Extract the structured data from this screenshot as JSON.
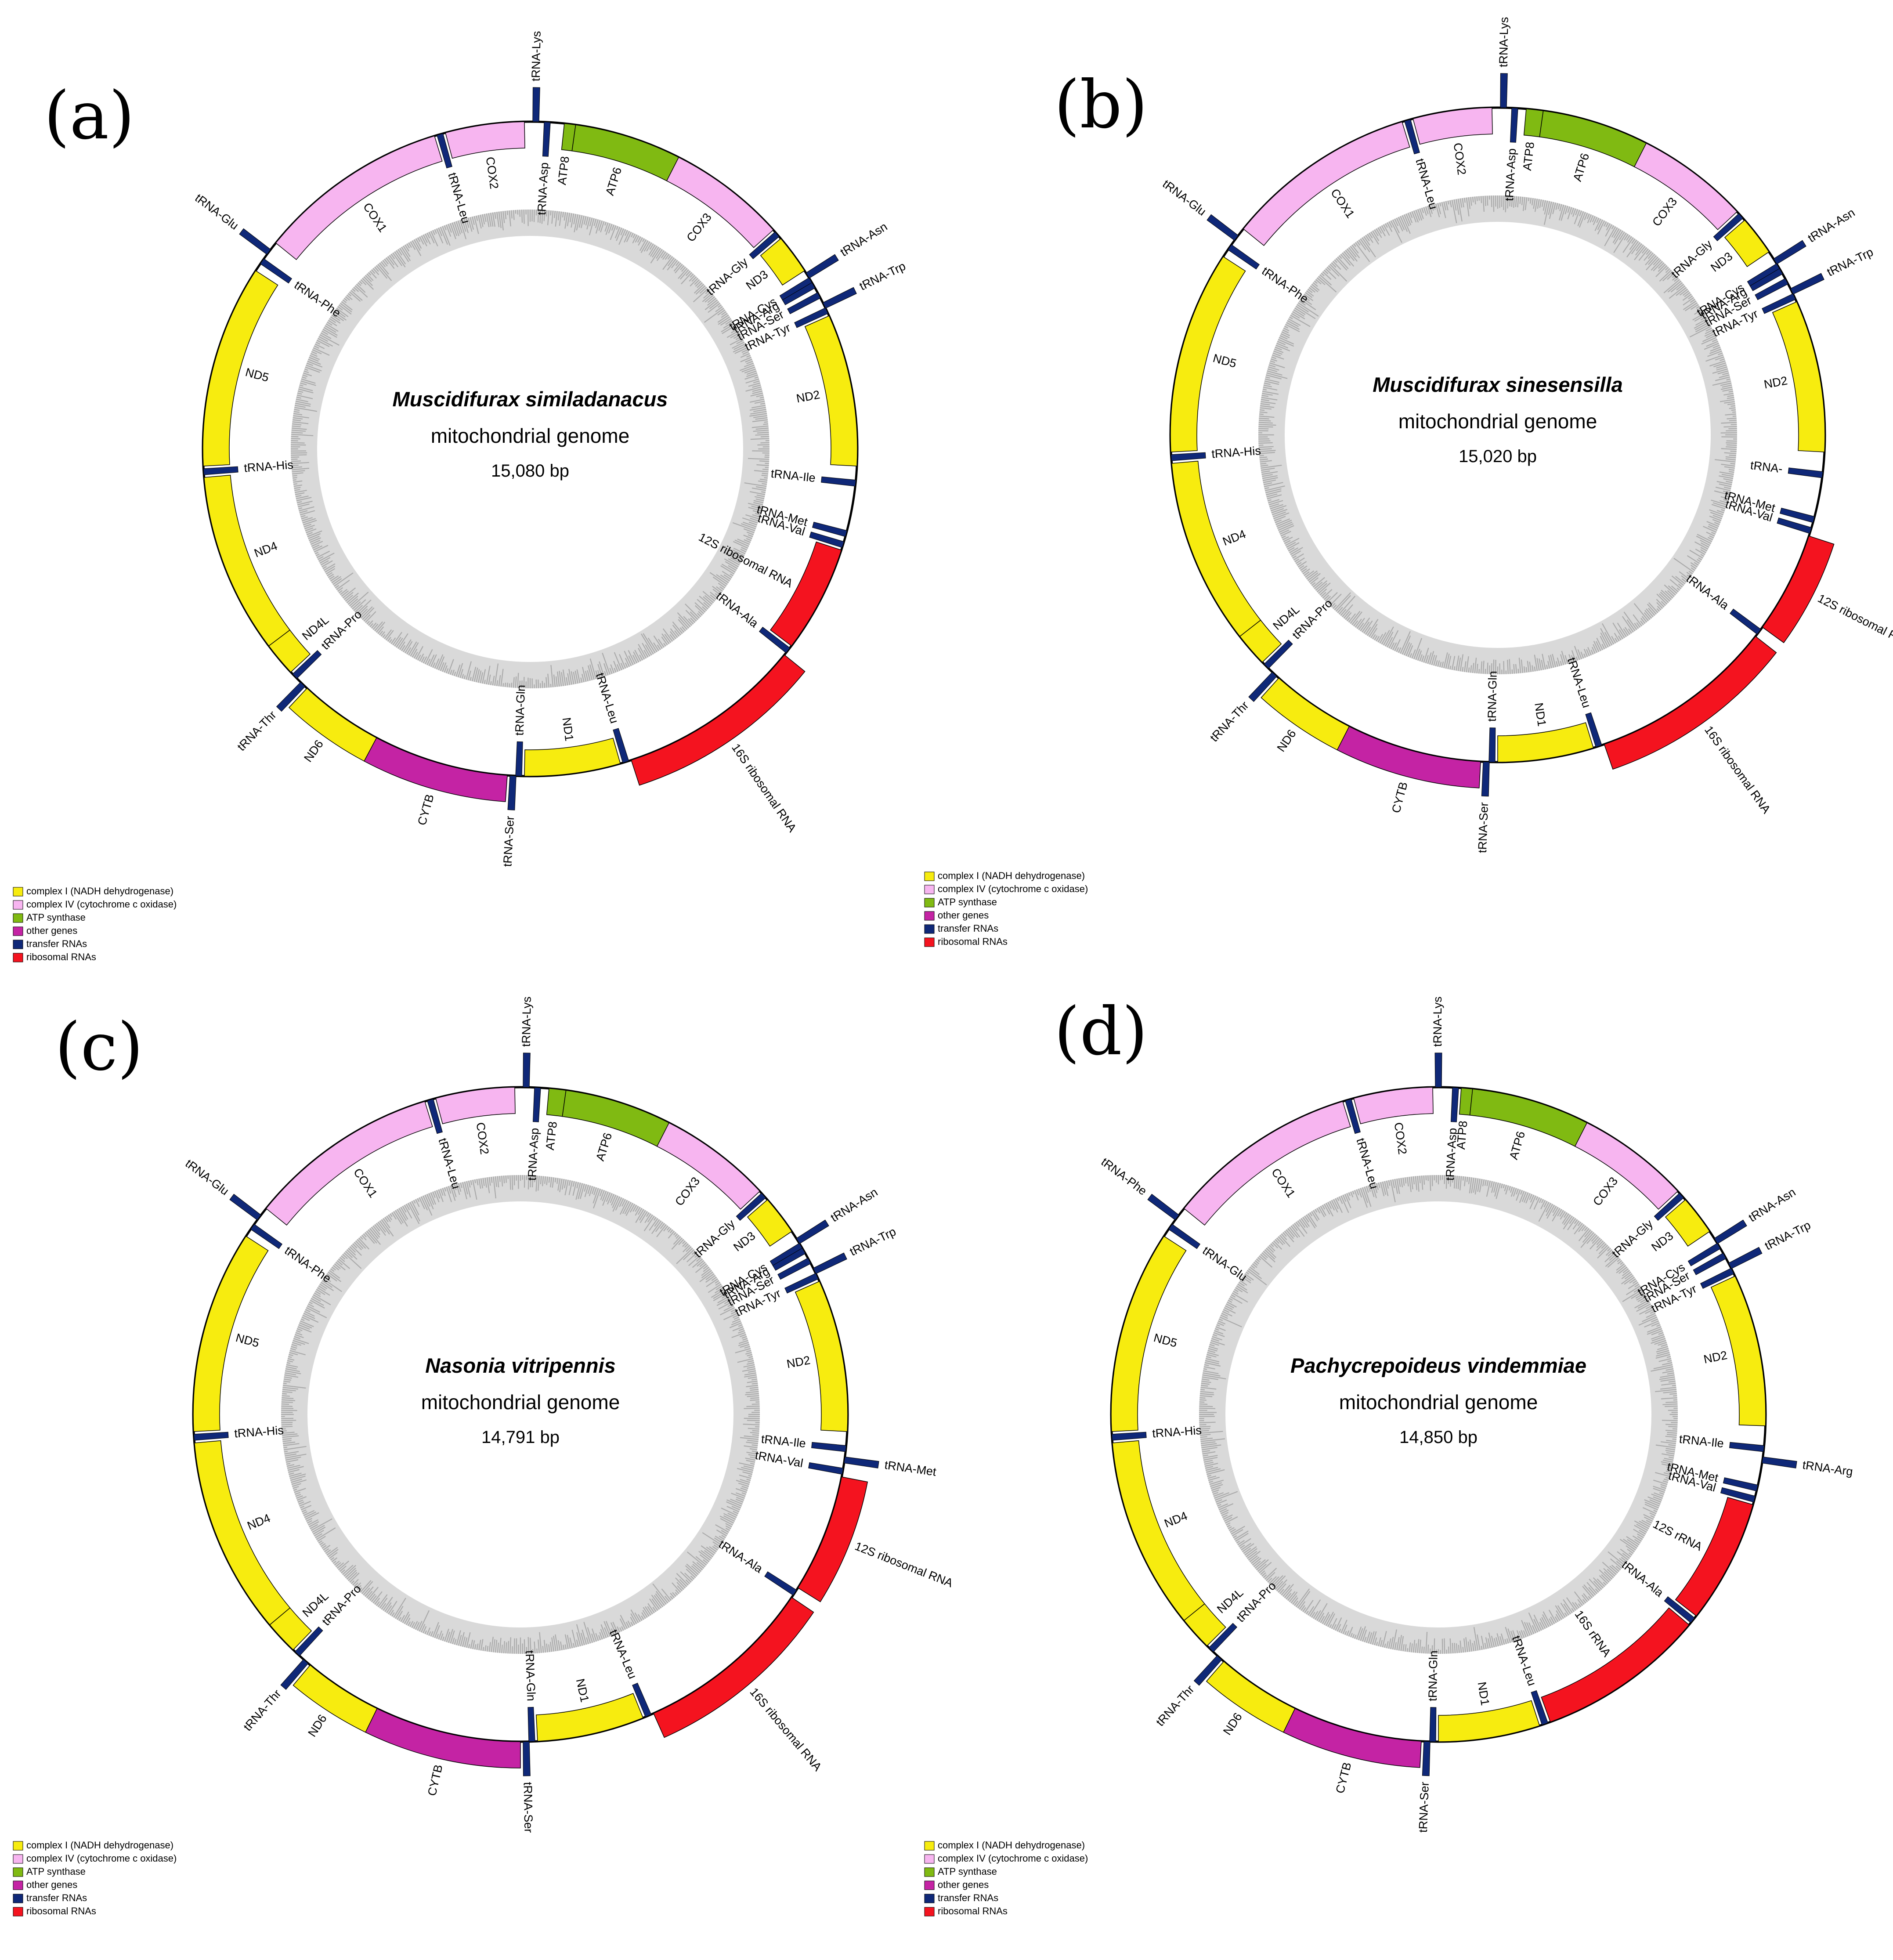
{
  "colors": {
    "complexI": "#f7ec0f",
    "complexIV": "#f7b5f0",
    "atp": "#80ba12",
    "other": "#c423a4",
    "trna": "#0f2878",
    "rrna": "#f4131f",
    "gc_ring": "#d9d9d9",
    "gc_tick": "#a9a9a9"
  },
  "legend": [
    {
      "key": "complexI",
      "label": "complex I (NADH dehydrogenase)"
    },
    {
      "key": "complexIV",
      "label": "complex IV (cytochrome c oxidase)"
    },
    {
      "key": "atp",
      "label": "ATP synthase"
    },
    {
      "key": "other",
      "label": "other genes"
    },
    {
      "key": "trna",
      "label": "transfer RNAs"
    },
    {
      "key": "rrna",
      "label": "ribosomal RNAs"
    }
  ],
  "panels": [
    {
      "letter": "(a)",
      "species": "Muscidifurax similadanacus",
      "subtitle": "mitochondrial genome",
      "size": "15,080 bp",
      "genes": [
        {
          "n": "tRNA-Lys",
          "t": "trna",
          "a": 1,
          "s": "out"
        },
        {
          "n": "tRNA-Asp",
          "t": "trna",
          "a": 3,
          "s": "in"
        },
        {
          "n": "ATP8",
          "t": "atp",
          "a": 6,
          "e": 8,
          "s": "in"
        },
        {
          "n": "ATP6",
          "t": "atp",
          "a": 8,
          "e": 27,
          "s": "in"
        },
        {
          "n": "COX3",
          "t": "complexIV",
          "a": 27,
          "e": 48,
          "s": "in"
        },
        {
          "n": "tRNA-Gly",
          "t": "trna",
          "a": 49,
          "s": "in"
        },
        {
          "n": "ND3",
          "t": "complexI",
          "a": 50,
          "e": 57,
          "s": "in"
        },
        {
          "n": "tRNA-Asn",
          "t": "trna",
          "a": 58,
          "s": "out"
        },
        {
          "n": "tRNA-Cys",
          "t": "trna",
          "a": 59,
          "s": "in"
        },
        {
          "n": "tRNA-Arg",
          "t": "trna",
          "a": 60,
          "s": "in"
        },
        {
          "n": "tRNA-Ser",
          "t": "trna",
          "a": 62,
          "s": "in"
        },
        {
          "n": "tRNA-Trp",
          "t": "trna",
          "a": 64,
          "s": "out"
        },
        {
          "n": "tRNA-Tyr",
          "t": "trna",
          "a": 65,
          "s": "in"
        },
        {
          "n": "ND2",
          "t": "complexI",
          "a": 66,
          "e": 93,
          "s": "in"
        },
        {
          "n": "tRNA-Ile",
          "t": "trna",
          "a": 96,
          "s": "in"
        },
        {
          "n": "tRNA-Met",
          "t": "trna",
          "a": 105,
          "s": "in"
        },
        {
          "n": "tRNA-Val",
          "t": "trna",
          "a": 107,
          "s": "in"
        },
        {
          "n": "12S ribosomal RNA",
          "t": "rrna",
          "a": 108,
          "e": 127,
          "s": "in"
        },
        {
          "n": "tRNA-Ala",
          "t": "trna",
          "a": 128,
          "s": "in"
        },
        {
          "n": "16S ribosomal RNA",
          "t": "rrna",
          "a": 129,
          "e": 162,
          "s": "out"
        },
        {
          "n": "tRNA-Leu",
          "t": "trna",
          "a": 163,
          "s": "in"
        },
        {
          "n": "ND1",
          "t": "complexI",
          "a": 164,
          "e": 181,
          "s": "in"
        },
        {
          "n": "tRNA-Gln",
          "t": "trna",
          "a": 182,
          "s": "in"
        },
        {
          "n": "tRNA-Ser",
          "t": "trna",
          "a": 183,
          "s": "out"
        },
        {
          "n": "CYTB",
          "t": "other",
          "a": 184,
          "e": 208,
          "s": "out"
        },
        {
          "n": "ND6",
          "t": "complexI",
          "a": 208,
          "e": 223,
          "s": "out"
        },
        {
          "n": "tRNA-Thr",
          "t": "trna",
          "a": 224,
          "s": "out"
        },
        {
          "n": "tRNA-Pro",
          "t": "trna",
          "a": 226,
          "s": "in"
        },
        {
          "n": "ND4L",
          "t": "complexI",
          "a": 227,
          "e": 233,
          "s": "in"
        },
        {
          "n": "ND4",
          "t": "complexI",
          "a": 233,
          "e": 265,
          "s": "in"
        },
        {
          "n": "tRNA-His",
          "t": "trna",
          "a": 266,
          "s": "in"
        },
        {
          "n": "ND5",
          "t": "complexI",
          "a": 267,
          "e": 303,
          "s": "in"
        },
        {
          "n": "tRNA-Phe",
          "t": "trna",
          "a": 305,
          "s": "in"
        },
        {
          "n": "tRNA-Glu",
          "t": "trna",
          "a": 307,
          "s": "out"
        },
        {
          "n": "COX1",
          "t": "complexIV",
          "a": 309,
          "e": 343,
          "s": "in"
        },
        {
          "n": "tRNA-Leu",
          "t": "trna",
          "a": 344,
          "s": "in"
        },
        {
          "n": "COX2",
          "t": "complexIV",
          "a": 345,
          "e": 359,
          "s": "in"
        }
      ]
    },
    {
      "letter": "(b)",
      "species": "Muscidifurax sinesensilla",
      "subtitle": "mitochondrial genome",
      "size": "15,020 bp",
      "genes": [
        {
          "n": "tRNA-Lys",
          "t": "trna",
          "a": 1,
          "s": "out"
        },
        {
          "n": "tRNA-Asp",
          "t": "trna",
          "a": 3,
          "s": "in"
        },
        {
          "n": "ATP8",
          "t": "atp",
          "a": 5,
          "e": 8,
          "s": "in"
        },
        {
          "n": "ATP6",
          "t": "atp",
          "a": 8,
          "e": 27,
          "s": "in"
        },
        {
          "n": "COX3",
          "t": "complexIV",
          "a": 27,
          "e": 47,
          "s": "in"
        },
        {
          "n": "tRNA-Gly",
          "t": "trna",
          "a": 48,
          "s": "in"
        },
        {
          "n": "ND3",
          "t": "complexI",
          "a": 49,
          "e": 56,
          "s": "in"
        },
        {
          "n": "tRNA-Asn",
          "t": "trna",
          "a": 58,
          "s": "out"
        },
        {
          "n": "tRNA-Cys",
          "t": "trna",
          "a": 59,
          "s": "in"
        },
        {
          "n": "tRNA-Arg",
          "t": "trna",
          "a": 60,
          "s": "in"
        },
        {
          "n": "tRNA-Ser",
          "t": "trna",
          "a": 62,
          "s": "in"
        },
        {
          "n": "tRNA-Trp",
          "t": "trna",
          "a": 64,
          "s": "out"
        },
        {
          "n": "tRNA-Tyr",
          "t": "trna",
          "a": 65,
          "s": "in"
        },
        {
          "n": "ND2",
          "t": "complexI",
          "a": 66,
          "e": 93,
          "s": "in"
        },
        {
          "n": "tRNA-",
          "t": "trna",
          "a": 97,
          "s": "in"
        },
        {
          "n": "tRNA-Met",
          "t": "trna",
          "a": 105,
          "s": "in"
        },
        {
          "n": "tRNA-Val",
          "t": "trna",
          "a": 107,
          "s": "in"
        },
        {
          "n": "12S ribosomal RNA",
          "t": "rrna",
          "a": 108,
          "e": 126,
          "s": "out"
        },
        {
          "n": "tRNA-Ala",
          "t": "trna",
          "a": 127,
          "s": "in"
        },
        {
          "n": "16S ribosomal RNA",
          "t": "rrna",
          "a": 128,
          "e": 161,
          "s": "out"
        },
        {
          "n": "tRNA-Leu",
          "t": "trna",
          "a": 162,
          "s": "in"
        },
        {
          "n": "ND1",
          "t": "complexI",
          "a": 163,
          "e": 180,
          "s": "in"
        },
        {
          "n": "tRNA-Gln",
          "t": "trna",
          "a": 181,
          "s": "in"
        },
        {
          "n": "tRNA-Ser",
          "t": "trna",
          "a": 182,
          "s": "out"
        },
        {
          "n": "CYTB",
          "t": "other",
          "a": 183,
          "e": 207,
          "s": "out"
        },
        {
          "n": "ND6",
          "t": "complexI",
          "a": 207,
          "e": 222,
          "s": "out"
        },
        {
          "n": "tRNA-Thr",
          "t": "trna",
          "a": 223,
          "s": "out"
        },
        {
          "n": "tRNA-Pro",
          "t": "trna",
          "a": 225,
          "s": "in"
        },
        {
          "n": "ND4L",
          "t": "complexI",
          "a": 226,
          "e": 232,
          "s": "in"
        },
        {
          "n": "ND4",
          "t": "complexI",
          "a": 232,
          "e": 265,
          "s": "in"
        },
        {
          "n": "tRNA-His",
          "t": "trna",
          "a": 266,
          "s": "in"
        },
        {
          "n": "ND5",
          "t": "complexI",
          "a": 267,
          "e": 303,
          "s": "in"
        },
        {
          "n": "tRNA-Phe",
          "t": "trna",
          "a": 305,
          "s": "in"
        },
        {
          "n": "tRNA-Glu",
          "t": "trna",
          "a": 307,
          "s": "out"
        },
        {
          "n": "COX1",
          "t": "complexIV",
          "a": 309,
          "e": 343,
          "s": "in"
        },
        {
          "n": "tRNA-Leu",
          "t": "trna",
          "a": 344,
          "s": "in"
        },
        {
          "n": "COX2",
          "t": "complexIV",
          "a": 345,
          "e": 359,
          "s": "in"
        }
      ]
    },
    {
      "letter": "(c)",
      "species": "Nasonia vitripennis",
      "subtitle": "mitochondrial genome",
      "size": "14,791 bp",
      "genes": [
        {
          "n": "tRNA-Lys",
          "t": "trna",
          "a": 1,
          "s": "out"
        },
        {
          "n": "tRNA-Asp",
          "t": "trna",
          "a": 3,
          "s": "in"
        },
        {
          "n": "ATP8",
          "t": "atp",
          "a": 5,
          "e": 8,
          "s": "in"
        },
        {
          "n": "ATP6",
          "t": "atp",
          "a": 8,
          "e": 27,
          "s": "in"
        },
        {
          "n": "COX3",
          "t": "complexIV",
          "a": 27,
          "e": 47,
          "s": "in"
        },
        {
          "n": "tRNA-Gly",
          "t": "trna",
          "a": 48,
          "s": "in"
        },
        {
          "n": "ND3",
          "t": "complexI",
          "a": 49,
          "e": 56,
          "s": "in"
        },
        {
          "n": "tRNA-Asn",
          "t": "trna",
          "a": 58,
          "s": "out"
        },
        {
          "n": "tRNA-Cys",
          "t": "trna",
          "a": 59,
          "s": "in"
        },
        {
          "n": "tRNA-Arg",
          "t": "trna",
          "a": 60,
          "s": "in"
        },
        {
          "n": "tRNA-Ser",
          "t": "trna",
          "a": 62,
          "s": "in"
        },
        {
          "n": "tRNA-Trp",
          "t": "trna",
          "a": 64,
          "s": "out"
        },
        {
          "n": "tRNA-Tyr",
          "t": "trna",
          "a": 65,
          "s": "in"
        },
        {
          "n": "ND2",
          "t": "complexI",
          "a": 66,
          "e": 93,
          "s": "in"
        },
        {
          "n": "tRNA-Ile",
          "t": "trna",
          "a": 96,
          "s": "in"
        },
        {
          "n": "tRNA-Met",
          "t": "trna",
          "a": 98,
          "s": "out"
        },
        {
          "n": "tRNA-Val",
          "t": "trna",
          "a": 100,
          "s": "in"
        },
        {
          "n": "12S ribosomal RNA",
          "t": "rrna",
          "a": 101,
          "e": 122,
          "s": "out"
        },
        {
          "n": "tRNA-Ala",
          "t": "trna",
          "a": 123,
          "s": "in"
        },
        {
          "n": "16S ribosomal RNA",
          "t": "rrna",
          "a": 124,
          "e": 156,
          "s": "out"
        },
        {
          "n": "tRNA-Leu",
          "t": "trna",
          "a": 157,
          "s": "in"
        },
        {
          "n": "ND1",
          "t": "complexI",
          "a": 158,
          "e": 177,
          "s": "in"
        },
        {
          "n": "tRNA-Gln",
          "t": "trna",
          "a": 178,
          "s": "in"
        },
        {
          "n": "tRNA-Ser",
          "t": "trna",
          "a": 179,
          "s": "out"
        },
        {
          "n": "CYTB",
          "t": "other",
          "a": 180,
          "e": 206,
          "s": "out"
        },
        {
          "n": "ND6",
          "t": "complexI",
          "a": 206,
          "e": 220,
          "s": "out"
        },
        {
          "n": "tRNA-Thr",
          "t": "trna",
          "a": 221,
          "s": "out"
        },
        {
          "n": "tRNA-Pro",
          "t": "trna",
          "a": 223,
          "s": "in"
        },
        {
          "n": "ND4L",
          "t": "complexI",
          "a": 224,
          "e": 230,
          "s": "in"
        },
        {
          "n": "ND4",
          "t": "complexI",
          "a": 230,
          "e": 265,
          "s": "in"
        },
        {
          "n": "tRNA-His",
          "t": "trna",
          "a": 266,
          "s": "in"
        },
        {
          "n": "ND5",
          "t": "complexI",
          "a": 267,
          "e": 303,
          "s": "in"
        },
        {
          "n": "tRNA-Phe",
          "t": "trna",
          "a": 305,
          "s": "in"
        },
        {
          "n": "tRNA-Glu",
          "t": "trna",
          "a": 307,
          "s": "out"
        },
        {
          "n": "COX1",
          "t": "complexIV",
          "a": 309,
          "e": 343,
          "s": "in"
        },
        {
          "n": "tRNA-Leu",
          "t": "trna",
          "a": 344,
          "s": "in"
        },
        {
          "n": "COX2",
          "t": "complexIV",
          "a": 345,
          "e": 359,
          "s": "in"
        }
      ]
    },
    {
      "letter": "(d)",
      "species": "Pachycrepoideus vindemmiae",
      "subtitle": "mitochondrial genome",
      "size": "14,850 bp",
      "genes": [
        {
          "n": "tRNA-Lys",
          "t": "trna",
          "a": 0,
          "s": "out"
        },
        {
          "n": "tRNA-Asp",
          "t": "trna",
          "a": 3,
          "s": "in"
        },
        {
          "n": "ATP8",
          "t": "atp",
          "a": 4,
          "e": 6,
          "s": "in"
        },
        {
          "n": "ATP6",
          "t": "atp",
          "a": 6,
          "e": 27,
          "s": "in"
        },
        {
          "n": "COX3",
          "t": "complexIV",
          "a": 27,
          "e": 47,
          "s": "in"
        },
        {
          "n": "tRNA-Gly",
          "t": "trna",
          "a": 48,
          "s": "in"
        },
        {
          "n": "ND3",
          "t": "complexI",
          "a": 49,
          "e": 56,
          "s": "in"
        },
        {
          "n": "tRNA-Asn",
          "t": "trna",
          "a": 58,
          "s": "out"
        },
        {
          "n": "tRNA-Cys",
          "t": "trna",
          "a": 59,
          "s": "in"
        },
        {
          "n": "tRNA-Ser",
          "t": "trna",
          "a": 61,
          "s": "in"
        },
        {
          "n": "tRNA-Trp",
          "t": "trna",
          "a": 63,
          "s": "out"
        },
        {
          "n": "tRNA-Tyr",
          "t": "trna",
          "a": 64,
          "s": "in"
        },
        {
          "n": "ND2",
          "t": "complexI",
          "a": 65,
          "e": 92,
          "s": "in"
        },
        {
          "n": "tRNA-Ile",
          "t": "trna",
          "a": 96,
          "s": "in"
        },
        {
          "n": "tRNA-Arg",
          "t": "trna",
          "a": 98,
          "s": "out"
        },
        {
          "n": "tRNA-Met",
          "t": "trna",
          "a": 103,
          "s": "in"
        },
        {
          "n": "tRNA-Val",
          "t": "trna",
          "a": 105,
          "s": "in"
        },
        {
          "n": "12S rRNA",
          "t": "rrna",
          "a": 106,
          "e": 128,
          "s": "in"
        },
        {
          "n": "tRNA-Ala",
          "t": "trna",
          "a": 129,
          "s": "in"
        },
        {
          "n": "16S rRNA",
          "t": "rrna",
          "a": 130,
          "e": 160,
          "s": "in"
        },
        {
          "n": "tRNA-Leu",
          "t": "trna",
          "a": 161,
          "s": "in"
        },
        {
          "n": "ND1",
          "t": "complexI",
          "a": 162,
          "e": 180,
          "s": "in"
        },
        {
          "n": "tRNA-Gln",
          "t": "trna",
          "a": 181,
          "s": "in"
        },
        {
          "n": "tRNA-Ser",
          "t": "trna",
          "a": 182,
          "s": "out"
        },
        {
          "n": "CYTB",
          "t": "other",
          "a": 183,
          "e": 206,
          "s": "out"
        },
        {
          "n": "ND6",
          "t": "complexI",
          "a": 206,
          "e": 221,
          "s": "out"
        },
        {
          "n": "tRNA-Thr",
          "t": "trna",
          "a": 222,
          "s": "out"
        },
        {
          "n": "tRNA-Pro",
          "t": "trna",
          "a": 224,
          "s": "in"
        },
        {
          "n": "ND4L",
          "t": "complexI",
          "a": 225,
          "e": 231,
          "s": "in"
        },
        {
          "n": "ND4",
          "t": "complexI",
          "a": 231,
          "e": 265,
          "s": "in"
        },
        {
          "n": "tRNA-His",
          "t": "trna",
          "a": 266,
          "s": "in"
        },
        {
          "n": "ND5",
          "t": "complexI",
          "a": 267,
          "e": 303,
          "s": "in"
        },
        {
          "n": "tRNA-Glu",
          "t": "trna",
          "a": 305,
          "s": "in"
        },
        {
          "n": "tRNA-Phe",
          "t": "trna",
          "a": 307,
          "s": "out"
        },
        {
          "n": "COX1",
          "t": "complexIV",
          "a": 309,
          "e": 343,
          "s": "in"
        },
        {
          "n": "tRNA-Leu",
          "t": "trna",
          "a": 344,
          "s": "in"
        },
        {
          "n": "COX2",
          "t": "complexIV",
          "a": 345,
          "e": 359,
          "s": "in"
        }
      ]
    }
  ]
}
